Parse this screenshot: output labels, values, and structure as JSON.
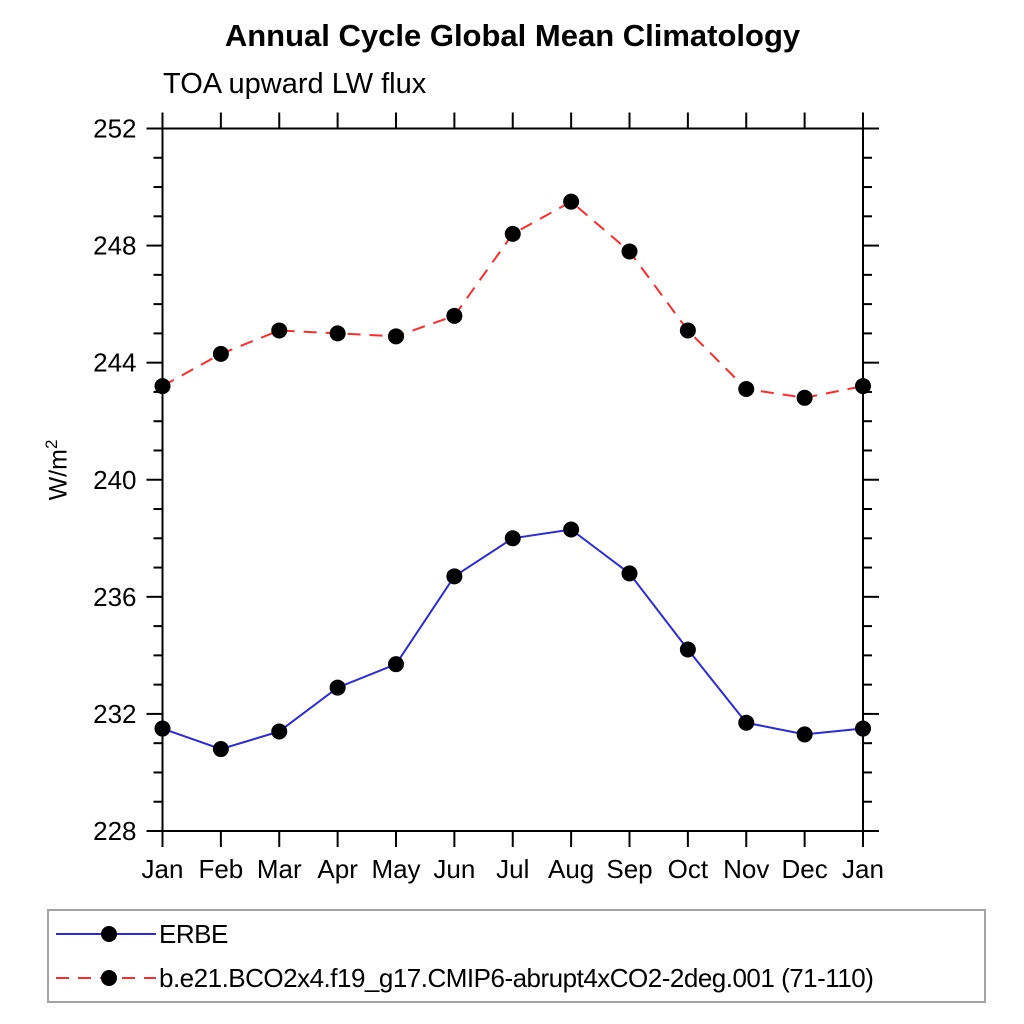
{
  "chart_data": {
    "type": "line",
    "title": "Annual Cycle Global Mean Climatology",
    "subtitle": "TOA upward LW flux",
    "ylabel": "W/m^2",
    "ylabel_base": "W/m",
    "ylabel_exp": "2",
    "x_tick_labels": [
      "Jan",
      "Feb",
      "Mar",
      "Apr",
      "May",
      "Jun",
      "Jul",
      "Aug",
      "Sep",
      "Oct",
      "Nov",
      "Dec",
      "Jan"
    ],
    "ylim": [
      228,
      252
    ],
    "y_major_ticks": [
      228,
      232,
      236,
      240,
      244,
      248,
      252
    ],
    "y_minor_step": 1,
    "grid": false,
    "legend_position": "bottom",
    "axis_color": "#000000",
    "marker_shape": "circle",
    "series": [
      {
        "name": "ERBE",
        "color": "#2a2ad9",
        "style": "solid",
        "marker_color": "#000000",
        "values": [
          231.5,
          230.8,
          231.4,
          232.9,
          233.7,
          236.7,
          238.0,
          238.3,
          236.8,
          234.2,
          231.7,
          231.3,
          231.5
        ]
      },
      {
        "name": "b.e21.BCO2x4.f19_g17.CMIP6-abrupt4xCO2-2deg.001 (71-110)",
        "color": "#ff2b2b",
        "style": "dashed",
        "marker_color": "#000000",
        "values": [
          243.2,
          244.3,
          245.1,
          245.0,
          244.9,
          245.6,
          248.4,
          249.5,
          247.8,
          245.1,
          243.1,
          242.8,
          243.2
        ]
      }
    ]
  }
}
